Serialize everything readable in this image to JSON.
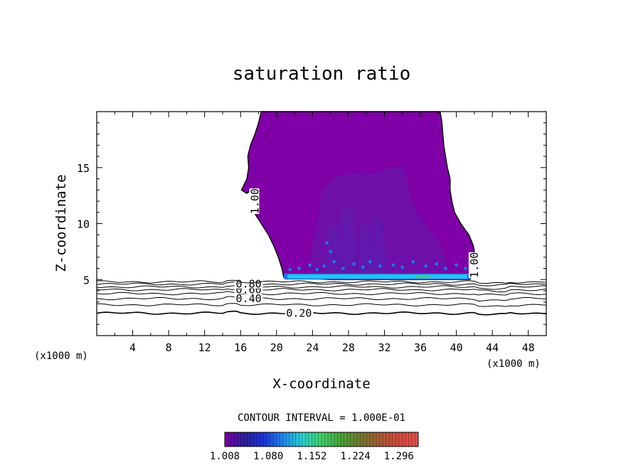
{
  "chart_data": {
    "type": "contour",
    "title": "saturation ratio",
    "xlabel": "X-coordinate",
    "ylabel": "Z-coordinate",
    "x_unit_left": "(x1000 m)",
    "x_unit_right": "(x1000 m)",
    "xlim": [
      0,
      50
    ],
    "ylim": [
      0,
      20
    ],
    "x_ticks": [
      4,
      8,
      12,
      16,
      20,
      24,
      28,
      32,
      36,
      40,
      44,
      48
    ],
    "y_ticks": [
      5,
      10,
      15
    ],
    "x_tick_labels": [
      "4",
      "8",
      "12",
      "16",
      "20",
      "24",
      "28",
      "32",
      "36",
      "40",
      "44",
      "48"
    ],
    "y_tick_labels": [
      "5",
      "10",
      "15"
    ],
    "contour_interval_text": "CONTOUR INTERVAL = 1.000E-01",
    "contour_lines": [
      {
        "level": 0.2,
        "z": 2.0,
        "label": "0.20",
        "label_x": 22.5
      },
      {
        "level": 0.3,
        "z": 2.75,
        "label": "",
        "label_x": 0
      },
      {
        "level": 0.4,
        "z": 3.3,
        "label": "0.40",
        "label_x": 16.9
      },
      {
        "level": 0.5,
        "z": 3.75,
        "label": "",
        "label_x": 0
      },
      {
        "level": 0.6,
        "z": 4.1,
        "label": "0.60",
        "label_x": 16.9
      },
      {
        "level": 0.7,
        "z": 4.35,
        "label": "",
        "label_x": 0
      },
      {
        "level": 0.8,
        "z": 4.6,
        "label": "0.80",
        "label_x": 16.9
      },
      {
        "level": 0.9,
        "z": 4.8,
        "label": "",
        "label_x": 0
      }
    ],
    "cloud_label_1": {
      "text": "1.00",
      "x": 17.6,
      "z": 12.0
    },
    "cloud_label_2": {
      "text": "1.00",
      "x": 42.0,
      "z": 6.3
    },
    "cloud_outline": [
      [
        18.3,
        20.0
      ],
      [
        18.0,
        19.0
      ],
      [
        17.6,
        18.0
      ],
      [
        17.1,
        17.0
      ],
      [
        16.8,
        16.0
      ],
      [
        16.9,
        15.0
      ],
      [
        16.7,
        14.0
      ],
      [
        16.1,
        13.0
      ],
      [
        16.7,
        12.7
      ],
      [
        17.5,
        13.2
      ],
      [
        17.3,
        12.0
      ],
      [
        17.5,
        11.0
      ],
      [
        18.3,
        10.0
      ],
      [
        19.1,
        9.0
      ],
      [
        19.7,
        8.0
      ],
      [
        20.2,
        7.0
      ],
      [
        20.6,
        6.0
      ],
      [
        20.8,
        5.2
      ],
      [
        26.0,
        5.0
      ],
      [
        32.0,
        5.0
      ],
      [
        36.0,
        5.0
      ],
      [
        41.5,
        5.0
      ],
      [
        42.0,
        6.0
      ],
      [
        42.1,
        7.0
      ],
      [
        41.9,
        8.0
      ],
      [
        41.4,
        9.0
      ],
      [
        40.5,
        10.0
      ],
      [
        39.8,
        11.0
      ],
      [
        39.5,
        12.0
      ],
      [
        39.3,
        13.0
      ],
      [
        39.3,
        14.0
      ],
      [
        39.0,
        15.0
      ],
      [
        38.8,
        16.0
      ],
      [
        38.6,
        17.0
      ],
      [
        38.5,
        18.0
      ],
      [
        38.4,
        19.0
      ],
      [
        38.2,
        20.0
      ]
    ],
    "core_outline": [
      [
        23.5,
        5.5
      ],
      [
        24.0,
        8.0
      ],
      [
        24.5,
        10.0
      ],
      [
        24.8,
        11.5
      ],
      [
        25.0,
        13.0
      ],
      [
        26.5,
        14.2
      ],
      [
        28.5,
        14.6
      ],
      [
        31.0,
        14.4
      ],
      [
        32.5,
        15.0
      ],
      [
        34.0,
        15.1
      ],
      [
        34.5,
        14.0
      ],
      [
        35.0,
        12.0
      ],
      [
        36.0,
        10.5
      ],
      [
        37.5,
        9.0
      ],
      [
        38.5,
        7.5
      ],
      [
        39.0,
        6.0
      ],
      [
        38.5,
        5.3
      ]
    ],
    "colorbar": {
      "min": 1.008,
      "max": 1.328,
      "tick_labels": [
        "1.008",
        "1.080",
        "1.152",
        "1.224",
        "1.296"
      ],
      "colors": [
        "#7a00a8",
        "#2c1f9c",
        "#1c33d8",
        "#1e86f0",
        "#2ad0d0",
        "#3fcf6a",
        "#4aa238",
        "#6e7a2e",
        "#a85a36",
        "#d24a3c",
        "#e2504a"
      ]
    },
    "colors": {
      "cloud": "#7e00a6",
      "core": "#6a12a8",
      "inner_core": "#5f1aac",
      "base_blue": "#1e73f0",
      "base_cyan": "#26c8ea",
      "base_green": "#3fd06a"
    }
  }
}
